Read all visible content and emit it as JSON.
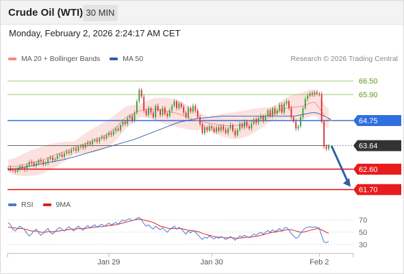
{
  "header": {
    "title": "Crude Oil (WTI)",
    "timeframe": "30 MIN",
    "timestamp": "Monday, February 2, 2026 2:24:17 AM CET"
  },
  "legend": {
    "main": [
      {
        "label": "MA 20 + Bollinger Bands",
        "color": "#f28b82"
      },
      {
        "label": "MA 50",
        "color": "#2e5fa6"
      }
    ],
    "rsi": [
      {
        "label": "RSI",
        "color": "#4a78d6"
      },
      {
        "label": "9MA",
        "color": "#e02020"
      }
    ]
  },
  "credit": "Research © 2026 Trading Central",
  "chart_data": [
    {
      "type": "candlestick",
      "title": "",
      "xlabel": "",
      "ylabel": "",
      "ylim": [
        61.6,
        66.9
      ],
      "x_ticks": [
        "Jan 29",
        "Jan 30",
        "Feb 2"
      ],
      "levels": [
        {
          "label": "66.50",
          "value": 66.5,
          "color": "#8cc152",
          "text_color": "#5a9a1a",
          "kind": "resistance"
        },
        {
          "label": "65.90",
          "value": 65.9,
          "color": "#8cc152",
          "text_color": "#5a9a1a",
          "kind": "resistance"
        },
        {
          "label": "64.75",
          "value": 64.75,
          "color": "#2f6fe0",
          "text_color": "#ffffff",
          "kind": "pivot"
        },
        {
          "label": "63.64",
          "value": 63.64,
          "color": "#333333",
          "text_color": "#ffffff",
          "kind": "last_price"
        },
        {
          "label": "62.60",
          "value": 62.6,
          "color": "#e81c1c",
          "text_color": "#ffffff",
          "kind": "support"
        },
        {
          "label": "61.70",
          "value": 61.7,
          "color": "#e81c1c",
          "text_color": "#ffffff",
          "kind": "support"
        }
      ],
      "forecast_arrow": {
        "from": 63.64,
        "to": 61.7,
        "color": "#2f5fa8"
      },
      "colors": {
        "up": "#3a9b3a",
        "down": "#d93030",
        "ma20": "#f28b82",
        "band": "#f7c9c5",
        "ma50": "#2e5fa6"
      },
      "close": [
        62.65,
        62.58,
        62.55,
        62.5,
        62.6,
        62.72,
        62.65,
        62.58,
        62.78,
        62.92,
        62.88,
        62.75,
        62.85,
        63.0,
        62.95,
        62.82,
        62.88,
        63.05,
        63.12,
        63.0,
        63.05,
        63.2,
        63.25,
        63.15,
        63.3,
        63.38,
        63.32,
        63.45,
        63.5,
        63.42,
        63.58,
        63.62,
        63.55,
        63.7,
        63.78,
        63.7,
        63.85,
        63.9,
        63.82,
        63.95,
        64.02,
        63.96,
        64.1,
        64.2,
        64.12,
        64.28,
        64.4,
        64.32,
        64.55,
        64.7,
        64.6,
        64.85,
        64.95,
        64.75,
        65.1,
        65.6,
        66.1,
        65.8,
        65.2,
        65.0,
        65.3,
        65.1,
        64.9,
        65.4,
        65.2,
        65.0,
        65.3,
        65.05,
        64.95,
        65.2,
        65.4,
        65.6,
        65.3,
        65.5,
        65.35,
        65.1,
        64.9,
        65.3,
        65.15,
        65.4,
        65.2,
        64.9,
        64.6,
        64.2,
        64.45,
        64.3,
        64.5,
        64.4,
        64.25,
        64.45,
        64.3,
        64.5,
        64.35,
        64.2,
        64.4,
        64.55,
        64.3,
        64.1,
        64.35,
        64.6,
        64.45,
        64.7,
        64.5,
        64.4,
        64.6,
        64.8,
        64.65,
        64.85,
        64.95,
        64.75,
        64.95,
        65.2,
        64.95,
        65.3,
        65.05,
        65.2,
        65.45,
        65.1,
        65.5,
        65.6,
        65.3,
        64.9,
        64.7,
        64.4,
        64.5,
        64.9,
        65.3,
        65.7,
        65.85,
        65.95,
        65.9,
        66.0,
        65.95,
        65.92,
        64.7,
        63.6,
        63.5,
        63.64
      ],
      "series": [
        {
          "name": "MA 20 + Bollinger Bands",
          "values": [
            62.75,
            62.73,
            62.72,
            62.72,
            62.73,
            62.75,
            62.78,
            62.8,
            62.82,
            62.85,
            62.88,
            62.9,
            62.92,
            62.95,
            62.98,
            63.02,
            63.06,
            63.1,
            63.14,
            63.18,
            63.22,
            63.26,
            63.3,
            63.34,
            63.38,
            63.42,
            63.46,
            63.5,
            63.54,
            63.58,
            63.62,
            63.66,
            63.7,
            63.74,
            63.78,
            63.82,
            63.86,
            63.9,
            63.94,
            63.98,
            64.03,
            64.08,
            64.13,
            64.2,
            64.28,
            64.36,
            64.45,
            64.55,
            64.65,
            64.75,
            64.85,
            64.92,
            64.98,
            65.03,
            65.08,
            65.13,
            65.17,
            65.2,
            65.22,
            65.24,
            65.25,
            65.26,
            65.26,
            65.25,
            65.24,
            65.22,
            65.2,
            65.18,
            65.16,
            65.14,
            65.12,
            65.1,
            65.07,
            65.04,
            65.0,
            64.96,
            64.92,
            64.88,
            64.84,
            64.8,
            64.77,
            64.74,
            64.72,
            64.7,
            64.68,
            64.66,
            64.64,
            64.62,
            64.6,
            64.58,
            64.56,
            64.55,
            64.54,
            64.53,
            64.52,
            64.52,
            64.52,
            64.53,
            64.54,
            64.56,
            64.58,
            64.6,
            64.63,
            64.66,
            64.7,
            64.74,
            64.78,
            64.82,
            64.86,
            64.9,
            64.94,
            64.98,
            65.02,
            65.06,
            65.1,
            65.14,
            65.18,
            65.22,
            65.26,
            65.3,
            65.32,
            65.33,
            65.34,
            65.35,
            65.36,
            65.38,
            65.4,
            65.44,
            65.48,
            65.52,
            65.55,
            65.55,
            65.45,
            65.3,
            65.15,
            65.0,
            64.9,
            64.82,
            64.76,
            64.72
          ]
        },
        {
          "name": "MA 50",
          "values": [
            62.55,
            62.57,
            62.59,
            62.61,
            62.63,
            62.65,
            62.67,
            62.69,
            62.71,
            62.73,
            62.75,
            62.77,
            62.79,
            62.81,
            62.83,
            62.85,
            62.87,
            62.89,
            62.91,
            62.93,
            62.95,
            62.97,
            62.99,
            63.01,
            63.03,
            63.05,
            63.08,
            63.11,
            63.14,
            63.17,
            63.2,
            63.23,
            63.26,
            63.29,
            63.32,
            63.35,
            63.38,
            63.41,
            63.44,
            63.47,
            63.5,
            63.53,
            63.56,
            63.59,
            63.62,
            63.65,
            63.68,
            63.71,
            63.74,
            63.77,
            63.8,
            63.83,
            63.86,
            63.89,
            63.92,
            63.96,
            64.0,
            64.04,
            64.08,
            64.12,
            64.16,
            64.2,
            64.24,
            64.28,
            64.32,
            64.36,
            64.4,
            64.44,
            64.48,
            64.52,
            64.56,
            64.6,
            64.64,
            64.67,
            64.7,
            64.72,
            64.74,
            64.76,
            64.78,
            64.8,
            64.82,
            64.84,
            64.85,
            64.86,
            64.87,
            64.88,
            64.89,
            64.9,
            64.91,
            64.92,
            64.93,
            64.94,
            64.95,
            64.95,
            64.95,
            64.95,
            64.95,
            64.95,
            64.95,
            64.95,
            64.95,
            64.95,
            64.95,
            64.95,
            64.95,
            64.95,
            64.95,
            64.95,
            64.95,
            64.95,
            64.95,
            64.95,
            64.95,
            64.95,
            64.95,
            64.95,
            64.95,
            64.95,
            64.95,
            64.95,
            64.95,
            64.95,
            64.95,
            64.96,
            64.98,
            65.0,
            65.02,
            65.04,
            65.06,
            65.08,
            65.1,
            65.1,
            65.08,
            65.05,
            65.0,
            64.95,
            64.9,
            64.85,
            64.8
          ]
        }
      ]
    },
    {
      "type": "line",
      "title": "",
      "ylim": [
        22,
        78
      ],
      "y_ticks": [
        "70",
        "50",
        "30"
      ],
      "x_ticks": [
        "Jan 29",
        "Jan 30",
        "Feb 2"
      ],
      "series": [
        {
          "name": "RSI",
          "values": [
            66,
            62,
            55,
            52,
            56,
            60,
            57,
            54,
            48,
            44,
            47,
            52,
            55,
            49,
            45,
            48,
            53,
            56,
            50,
            47,
            51,
            55,
            58,
            54,
            52,
            56,
            59,
            55,
            52,
            57,
            60,
            56,
            53,
            58,
            61,
            57,
            60,
            62,
            58,
            61,
            63,
            60,
            62,
            65,
            62,
            64,
            66,
            63,
            67,
            70,
            68,
            71,
            72,
            69,
            70,
            73,
            74,
            70,
            64,
            60,
            62,
            58,
            55,
            60,
            57,
            54,
            57,
            53,
            50,
            54,
            57,
            60,
            55,
            58,
            55,
            51,
            47,
            52,
            49,
            53,
            50,
            46,
            42,
            38,
            42,
            40,
            44,
            41,
            39,
            42,
            40,
            43,
            41,
            38,
            40,
            43,
            40,
            37,
            40,
            44,
            42,
            45,
            43,
            41,
            44,
            47,
            45,
            48,
            50,
            47,
            50,
            53,
            50,
            54,
            51,
            53,
            56,
            52,
            57,
            58,
            54,
            48,
            44,
            40,
            42,
            48,
            53,
            57,
            58,
            59,
            58,
            59,
            58,
            57,
            44,
            34,
            33,
            35
          ]
        },
        {
          "name": "9MA",
          "values": [
            58,
            58,
            57,
            57,
            56,
            56,
            56,
            55,
            54,
            53,
            52,
            52,
            52,
            51,
            50,
            50,
            50,
            51,
            51,
            51,
            51,
            52,
            52,
            53,
            53,
            54,
            54,
            55,
            55,
            55,
            56,
            56,
            56,
            56,
            57,
            57,
            58,
            58,
            59,
            59,
            59,
            60,
            60,
            61,
            61,
            62,
            62,
            63,
            64,
            65,
            66,
            67,
            68,
            69,
            70,
            71,
            71,
            71,
            70,
            69,
            68,
            67,
            66,
            64,
            62,
            60,
            59,
            58,
            57,
            56,
            56,
            56,
            56,
            56,
            56,
            55,
            54,
            53,
            53,
            52,
            52,
            51,
            50,
            48,
            47,
            46,
            45,
            44,
            43,
            42,
            42,
            42,
            41,
            41,
            41,
            41,
            41,
            40,
            40,
            40,
            41,
            41,
            42,
            42,
            42,
            43,
            43,
            44,
            45,
            46,
            47,
            48,
            49,
            50,
            50,
            51,
            52,
            52,
            53,
            54,
            54,
            54,
            53,
            52,
            51,
            50,
            50,
            51,
            52,
            53,
            54,
            55,
            56,
            55,
            54,
            52,
            50,
            48
          ]
        }
      ]
    }
  ]
}
